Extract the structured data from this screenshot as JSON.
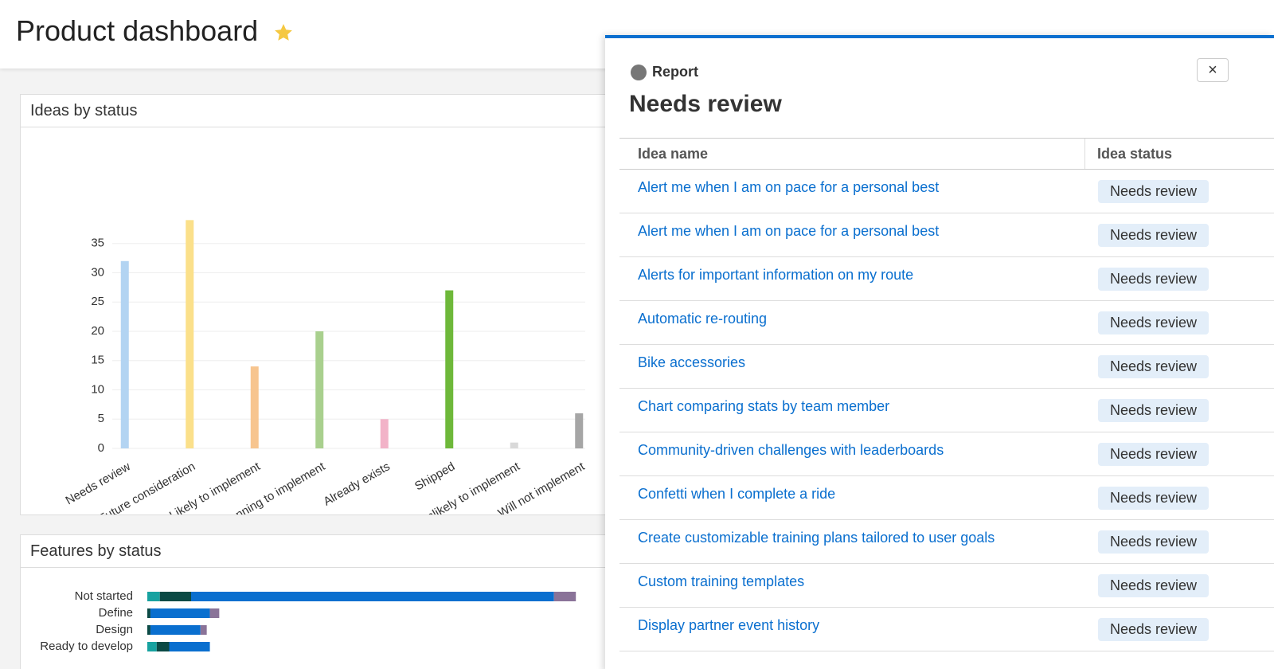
{
  "header": {
    "title": "Product dashboard"
  },
  "chart_data": [
    {
      "type": "bar",
      "title": "Ideas by status",
      "categories": [
        "Needs review",
        "Future consideration",
        "Likely to implement",
        "Planning to implement",
        "Already exists",
        "Shipped",
        "Unlikely to implement",
        "Will not implement"
      ],
      "values": [
        32,
        39,
        14,
        20,
        5,
        27,
        1,
        6
      ],
      "colors": [
        "#b3d4f2",
        "#fbe08a",
        "#f7c58f",
        "#a9d08e",
        "#f2b3c8",
        "#6eb83a",
        "#d9d9d9",
        "#a6a6a6"
      ],
      "ylim": [
        0,
        40
      ],
      "yticks": [
        0,
        5,
        10,
        15,
        20,
        25,
        30,
        35
      ],
      "grid": true
    },
    {
      "type": "stacked-hbar",
      "title": "Features by status",
      "categories": [
        "Not started",
        "Define",
        "Design",
        "Ready to develop"
      ],
      "series": [
        {
          "color": "#17a2a0",
          "values": [
            2,
            0,
            0,
            1.5
          ]
        },
        {
          "color": "#0b4a45",
          "values": [
            5,
            0.5,
            0.5,
            2
          ]
        },
        {
          "color": "#0a6fcf",
          "values": [
            58,
            9.5,
            8,
            6.5
          ]
        },
        {
          "color": "#8a7398",
          "values": [
            3.5,
            1.5,
            1,
            0
          ]
        }
      ],
      "xlim": [
        0,
        70
      ]
    }
  ],
  "panel": {
    "label": "Report",
    "close": "×",
    "title": "Needs review",
    "table": {
      "columns": [
        "Idea name",
        "Idea status"
      ],
      "rows": [
        [
          "Alert me when I am on pace for a personal best",
          "Needs review"
        ],
        [
          "Alert me when I am on pace for a personal best",
          "Needs review"
        ],
        [
          "Alerts for important information on my route",
          "Needs review"
        ],
        [
          "Automatic re-routing",
          "Needs review"
        ],
        [
          "Bike accessories",
          "Needs review"
        ],
        [
          "Chart comparing stats by team member",
          "Needs review"
        ],
        [
          "Community-driven challenges with leaderboards",
          "Needs review"
        ],
        [
          "Confetti when I complete a ride",
          "Needs review"
        ],
        [
          "Create customizable training plans tailored to user goals",
          "Needs review"
        ],
        [
          "Custom training templates",
          "Needs review"
        ],
        [
          "Display partner event history",
          "Needs review"
        ]
      ]
    }
  }
}
